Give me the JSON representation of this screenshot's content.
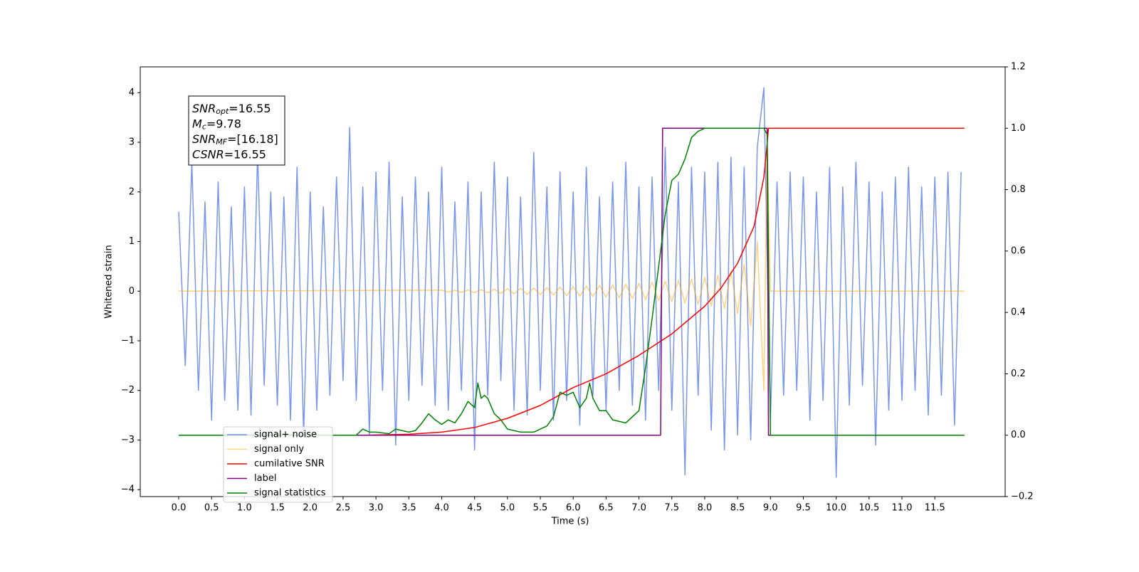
{
  "chart_data": {
    "type": "line",
    "xlabel": "Time (s)",
    "ylabel": "Whitened strain",
    "xlim": [
      -0.585,
      12.57
    ],
    "ylim": [
      -4.14,
      4.52
    ],
    "y2lim": [
      -0.2,
      1.2
    ],
    "xticks": [
      {
        "value": 0,
        "label": "0.0"
      },
      0.5,
      {
        "value": 1,
        "label": "1.0"
      },
      1.5,
      {
        "value": 2,
        "label": "2.0"
      },
      2.5,
      {
        "value": 3,
        "label": "3.0"
      },
      3.5,
      {
        "value": 4,
        "label": "4.0"
      },
      4.5,
      {
        "value": 5,
        "label": "5.0"
      },
      5.5,
      {
        "value": 6,
        "label": "6.0"
      },
      6.5,
      {
        "value": 7,
        "label": "7.0"
      },
      7.5,
      {
        "value": 8,
        "label": "8.0"
      },
      8.5,
      {
        "value": 9,
        "label": "9.0"
      },
      9.5,
      {
        "value": 10,
        "label": "10.0"
      },
      10.5,
      {
        "value": 11,
        "label": "11.0"
      },
      11.5
    ],
    "yticks": [
      {
        "value": -4,
        "label": "−4"
      },
      {
        "value": -3,
        "label": "−3"
      },
      {
        "value": -2,
        "label": "−2"
      },
      {
        "value": -1,
        "label": "−1"
      },
      0,
      1,
      2,
      3,
      4
    ],
    "y2ticks": [
      {
        "value": -0.2,
        "label": "−0.2"
      },
      {
        "value": 0,
        "label": "0.0"
      },
      0.2,
      0.4,
      0.6,
      0.8,
      {
        "value": 1,
        "label": "1.0"
      },
      1.2
    ],
    "legend": "lower left",
    "annotation": {
      "lines": [
        {
          "base": "SNR",
          "sub": "opt",
          "rest": "=16.55"
        },
        {
          "base": "M",
          "sub": "c",
          "rest": "=9.78"
        },
        {
          "base": "SNR",
          "sub": "MF",
          "rest": "=[16.18]"
        },
        {
          "base": "CSNR",
          "sub": "",
          "rest": "=16.55"
        }
      ]
    },
    "series": [
      {
        "name": "signal+ noise",
        "color": "#4169e1",
        "alpha": 0.7,
        "x": [
          0.0,
          0.1,
          0.2,
          0.3,
          0.4,
          0.5,
          0.6,
          0.7,
          0.8,
          0.9,
          1.0,
          1.1,
          1.2,
          1.3,
          1.4,
          1.5,
          1.6,
          1.7,
          1.8,
          1.9,
          2.0,
          2.1,
          2.2,
          2.3,
          2.4,
          2.5,
          2.6,
          2.7,
          2.8,
          2.9,
          3.0,
          3.1,
          3.2,
          3.3,
          3.4,
          3.5,
          3.6,
          3.7,
          3.8,
          3.9,
          4.0,
          4.1,
          4.2,
          4.3,
          4.4,
          4.5,
          4.6,
          4.7,
          4.8,
          4.9,
          5.0,
          5.1,
          5.2,
          5.3,
          5.4,
          5.5,
          5.6,
          5.7,
          5.8,
          5.9,
          6.0,
          6.1,
          6.2,
          6.3,
          6.4,
          6.5,
          6.6,
          6.7,
          6.8,
          6.9,
          7.0,
          7.1,
          7.2,
          7.3,
          7.4,
          7.5,
          7.6,
          7.7,
          7.8,
          7.9,
          8.0,
          8.1,
          8.2,
          8.3,
          8.4,
          8.5,
          8.6,
          8.7,
          8.8,
          8.9,
          9.0,
          9.1,
          9.2,
          9.3,
          9.4,
          9.5,
          9.6,
          9.7,
          9.8,
          9.9,
          10.0,
          10.1,
          10.2,
          10.3,
          10.4,
          10.5,
          10.6,
          10.7,
          10.8,
          10.9,
          11.0,
          11.1,
          11.2,
          11.3,
          11.4,
          11.5,
          11.6,
          11.7,
          11.8,
          11.9
        ],
        "values": [
          1.6,
          -1.5,
          2.6,
          -2.0,
          1.8,
          -2.6,
          2.2,
          -2.2,
          1.7,
          -2.4,
          2.1,
          -2.5,
          2.8,
          -1.9,
          2.0,
          -2.3,
          1.9,
          -2.6,
          2.5,
          -2.9,
          2.0,
          -2.4,
          1.7,
          -2.1,
          2.3,
          -1.8,
          3.3,
          -2.2,
          2.1,
          -2.9,
          2.4,
          -2.0,
          2.6,
          -3.1,
          1.9,
          -2.2,
          2.3,
          -1.9,
          2.0,
          -2.3,
          2.5,
          -2.4,
          1.8,
          -2.0,
          2.2,
          -3.2,
          2.0,
          -2.1,
          2.6,
          -1.8,
          2.3,
          -2.4,
          1.9,
          -2.5,
          2.8,
          -2.0,
          2.1,
          -2.6,
          2.4,
          -2.2,
          2.0,
          -2.7,
          2.5,
          -2.1,
          1.9,
          -2.4,
          2.2,
          -2.0,
          2.6,
          -2.3,
          2.1,
          -2.6,
          2.3,
          -2.0,
          2.9,
          -2.4,
          2.2,
          -3.7,
          2.5,
          -2.1,
          2.4,
          -2.8,
          2.6,
          -3.2,
          2.7,
          -2.9,
          2.5,
          -3.0,
          2.9,
          4.1,
          -2.6,
          2.2,
          -2.1,
          2.4,
          -2.0,
          2.3,
          -2.6,
          2.0,
          -2.2,
          2.5,
          -3.75,
          2.1,
          -2.3,
          2.6,
          -1.9,
          2.2,
          -3.1,
          2.0,
          -2.4,
          2.3,
          -2.2,
          2.5,
          -2.0,
          2.1,
          -2.5,
          2.3,
          -2.1,
          2.4,
          -2.7,
          2.4
        ]
      },
      {
        "name": "signal only",
        "color": "#ffa500",
        "alpha": 0.5,
        "x": [
          0.0,
          4.0,
          4.1,
          4.2,
          4.3,
          4.4,
          4.5,
          4.6,
          4.7,
          4.8,
          4.9,
          5.0,
          5.1,
          5.2,
          5.3,
          5.4,
          5.5,
          5.6,
          5.7,
          5.8,
          5.9,
          6.0,
          6.1,
          6.2,
          6.3,
          6.4,
          6.5,
          6.6,
          6.7,
          6.8,
          6.9,
          7.0,
          7.1,
          7.2,
          7.3,
          7.4,
          7.5,
          7.6,
          7.7,
          7.8,
          7.9,
          8.0,
          8.1,
          8.2,
          8.3,
          8.4,
          8.5,
          8.6,
          8.7,
          8.8,
          8.9,
          8.95,
          9.0,
          11.95
        ],
        "values": [
          0,
          0.02,
          -0.02,
          0.02,
          -0.025,
          0.025,
          -0.03,
          0.03,
          -0.035,
          0.04,
          -0.045,
          0.05,
          -0.055,
          0.06,
          -0.065,
          0.065,
          -0.07,
          0.075,
          -0.08,
          0.085,
          -0.09,
          0.09,
          -0.1,
          0.105,
          -0.11,
          0.115,
          -0.12,
          0.13,
          -0.135,
          0.14,
          -0.15,
          0.16,
          -0.17,
          0.18,
          -0.19,
          0.2,
          -0.21,
          0.22,
          -0.24,
          0.25,
          -0.27,
          0.28,
          -0.3,
          0.32,
          -0.35,
          0.4,
          -0.45,
          0.55,
          -0.7,
          1.0,
          -2.0,
          3.0,
          0,
          0
        ]
      },
      {
        "name": "cumilative SNR",
        "color": "#ff0000",
        "alpha": 1,
        "axis": "y2",
        "x": [
          2.8,
          3.5,
          4.0,
          4.5,
          5.0,
          5.5,
          6.0,
          6.5,
          7.0,
          7.5,
          8.0,
          8.25,
          8.5,
          8.75,
          8.9,
          8.95,
          8.97,
          11.95
        ],
        "values": [
          0,
          0.003,
          0.01,
          0.025,
          0.055,
          0.097,
          0.155,
          0.2,
          0.26,
          0.33,
          0.42,
          0.48,
          0.56,
          0.68,
          0.84,
          0.95,
          1.0,
          1.0
        ]
      },
      {
        "name": "label",
        "color": "#800080",
        "alpha": 1,
        "axis": "y2",
        "x": [
          0.0,
          7.33,
          7.36,
          8.95,
          8.97,
          11.95
        ],
        "values": [
          0,
          0,
          1,
          1,
          0,
          0
        ]
      },
      {
        "name": "signal statistics",
        "color": "#008000",
        "alpha": 1,
        "axis": "y2",
        "x": [
          0.0,
          2.7,
          2.8,
          2.9,
          3.0,
          3.2,
          3.3,
          3.5,
          3.6,
          3.7,
          3.8,
          3.9,
          4.0,
          4.1,
          4.2,
          4.3,
          4.4,
          4.5,
          4.55,
          4.6,
          4.65,
          4.7,
          4.8,
          4.9,
          5.0,
          5.2,
          5.4,
          5.6,
          5.7,
          5.8,
          5.9,
          6.0,
          6.1,
          6.2,
          6.25,
          6.3,
          6.4,
          6.5,
          6.6,
          6.8,
          6.9,
          7.0,
          7.1,
          7.2,
          7.3,
          7.4,
          7.5,
          7.6,
          7.7,
          7.8,
          7.9,
          8.0,
          8.9,
          8.95,
          9.0,
          11.95
        ],
        "values": [
          0,
          0,
          0.02,
          0.01,
          0.01,
          0.005,
          0.02,
          0.01,
          0.015,
          0.04,
          0.07,
          0.05,
          0.035,
          0.05,
          0.04,
          0.07,
          0.11,
          0.09,
          0.17,
          0.12,
          0.13,
          0.12,
          0.07,
          0.05,
          0.02,
          0.01,
          0.01,
          0.03,
          0.06,
          0.14,
          0.13,
          0.14,
          0.09,
          0.12,
          0.17,
          0.12,
          0.08,
          0.08,
          0.05,
          0.04,
          0.06,
          0.08,
          0.22,
          0.38,
          0.55,
          0.72,
          0.83,
          0.85,
          0.9,
          0.97,
          0.99,
          1.0,
          1.0,
          0.98,
          0,
          0
        ]
      }
    ]
  }
}
